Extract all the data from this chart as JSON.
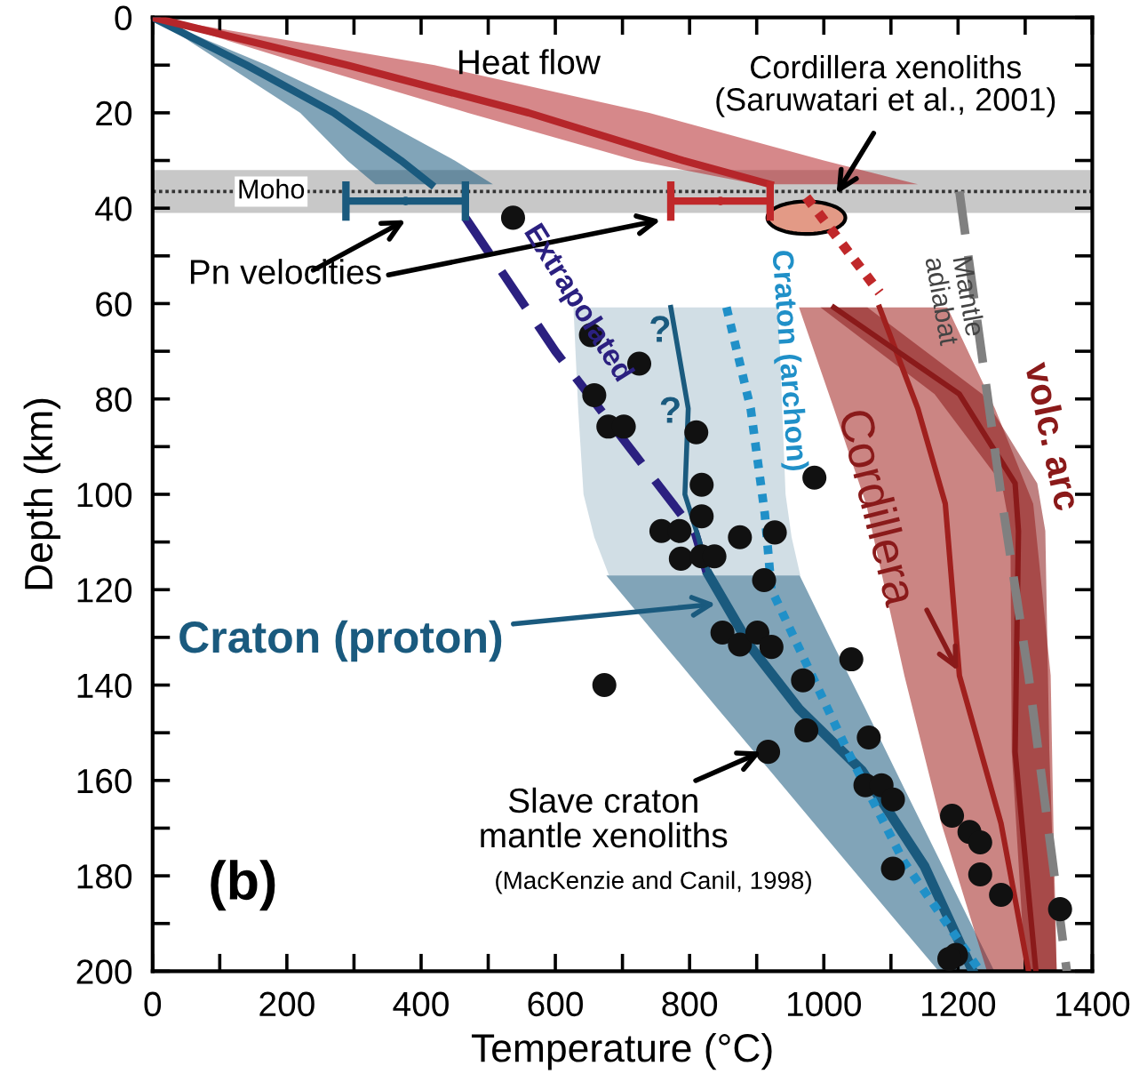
{
  "chart_data": {
    "type": "line",
    "orientation": "horizontal",
    "xlabel": "Temperature (°C)",
    "ylabel": "Depth (km)",
    "xlim": [
      0,
      1400
    ],
    "ylim": [
      200,
      0
    ],
    "xticks": [
      0,
      {
        "value": 100,
        "label": null
      },
      200,
      {
        "value": 300,
        "label": null
      },
      400,
      {
        "value": 500,
        "label": null
      },
      600,
      {
        "value": 700,
        "label": null
      },
      800,
      {
        "value": 900,
        "label": null
      },
      1000,
      {
        "value": 1100,
        "label": null
      },
      1200,
      {
        "value": 1300,
        "label": null
      },
      1400
    ],
    "yticks": [
      0,
      {
        "value": 10,
        "label": null
      },
      20,
      {
        "value": 30,
        "label": null
      },
      40,
      {
        "value": 50,
        "label": null
      },
      60,
      {
        "value": 70,
        "label": null
      },
      80,
      {
        "value": 90,
        "label": null
      },
      100,
      {
        "value": 110,
        "label": null
      },
      120,
      {
        "value": 130,
        "label": null
      },
      140,
      {
        "value": 150,
        "label": null
      },
      160,
      {
        "value": 170,
        "label": null
      },
      180,
      {
        "value": 190,
        "label": null
      },
      200
    ],
    "grid": false,
    "bands": [
      {
        "axis": "y",
        "from": 32,
        "to": 41,
        "label": "Moho",
        "color": "#c8c8c8"
      }
    ],
    "ref_lines": [
      {
        "axis": "y",
        "value": 36.5,
        "color": "#333333",
        "line_style": "dotted"
      }
    ],
    "series": [
      {
        "color": "#1a5a7e",
        "line_style": "solid",
        "x": [
          0,
          10,
          20,
          30,
          35
        ],
        "values": [
          0,
          140,
          270,
          370,
          415
        ],
        "lower": [
          0,
          110,
          220,
          290,
          332
        ],
        "upper": [
          0,
          170,
          320,
          450,
          507
        ]
      },
      {
        "color": "#b5262a",
        "line_style": "solid",
        "x": [
          0,
          10,
          20,
          30,
          35
        ],
        "values": [
          0,
          290,
          560,
          790,
          920
        ],
        "lower": [
          0,
          230,
          470,
          720,
          900
        ],
        "upper": [
          0,
          420,
          740,
          1000,
          1140
        ]
      },
      {
        "color": "#2b2080",
        "line_style": "dashed",
        "x": [
          42,
          70,
          108,
          118
        ],
        "values": [
          466,
          600,
          808,
          829
        ]
      },
      {
        "color": "#1a5a7e",
        "line_style": "solid",
        "x": [
          60.8,
          82,
          100,
          109,
          117
        ],
        "values": [
          772,
          798,
          793,
          813,
          829
        ],
        "lower": [
          627,
          634,
          642,
          658,
          680
        ],
        "upper": [
          932,
          938,
          943,
          952,
          965
        ]
      },
      {
        "color": "#1a5a7e",
        "line_style": "solid",
        "x": [
          117,
          132,
          145,
          158,
          178,
          200
        ],
        "values": [
          829,
          891,
          963,
          1057,
          1150,
          1222
        ],
        "lower": [
          676,
          765,
          842,
          920,
          1039,
          1171
        ],
        "upper": [
          964,
          1016,
          1062,
          1107,
          1177,
          1254
        ]
      },
      {
        "color": "#2090c8",
        "line_style": "dotted",
        "x": [
          60.8,
          82,
          104,
          120,
          154,
          177,
          200
        ],
        "values": [
          855,
          891,
          912,
          922,
          1036,
          1119,
          1233
        ]
      },
      {
        "type": "scatter",
        "color": "#e39a86",
        "marker": "circle",
        "x": [
          42
        ],
        "values": [
          974
        ]
      },
      {
        "color": "#c0282a",
        "line_style": "dotted",
        "x": [
          37.7,
          57.7
        ],
        "values": [
          974,
          1083
        ]
      },
      {
        "color": "#a0201e",
        "line_style": "solid",
        "x": [
          60.8,
          82,
          102,
          138,
          169,
          200
        ],
        "values": [
          1083,
          1140,
          1181,
          1202,
          1264,
          1305
        ],
        "lower": [
          963,
          1015,
          1063,
          1120,
          1175,
          1243
        ],
        "upper": [
          1184,
          1255,
          1312,
          1338,
          1342,
          1347
        ]
      },
      {
        "color": "#8a1a1a",
        "line_style": "solid",
        "x": [
          60.8,
          79,
          97.7,
          107.7,
          154,
          200
        ],
        "values": [
          1015,
          1202,
          1285,
          1290,
          1285,
          1316
        ],
        "lower": [
          995,
          1165,
          1265,
          1278,
          1280,
          1300
        ],
        "upper": [
          1065,
          1236,
          1318,
          1330,
          1336,
          1347
        ]
      },
      {
        "color": "#808080",
        "line_style": "dashed",
        "x": [
          36.5,
          100,
          138,
          200
        ],
        "values": [
          1202,
          1264,
          1305,
          1362
        ]
      },
      {
        "type": "scatter",
        "color": "#1a5a7e",
        "marker": "circle",
        "x": [
          38.5
        ],
        "values": [
          377
        ],
        "errors": [
          [
            288,
            466
          ]
        ]
      },
      {
        "type": "scatter",
        "color": "#c0282a",
        "marker": "circle",
        "x": [
          38.5
        ],
        "values": [
          846
        ],
        "errors": [
          [
            772,
            920
          ]
        ]
      },
      {
        "type": "scatter",
        "color": "#111111",
        "marker": "circle",
        "x": [
          42,
          66.6,
          72.6,
          79.2,
          85.8,
          85.8,
          87,
          96.5,
          98,
          104.6,
          107.7,
          107.7,
          109,
          108,
          113.5,
          113,
          113,
          118,
          129,
          131.5,
          129,
          132,
          134.6,
          139,
          140,
          149.5,
          151,
          154,
          161,
          161,
          164,
          167.4,
          170.8,
          173,
          179.7,
          178.5,
          184,
          187,
          196.6,
          197.4
        ],
        "values": [
          537,
          653,
          725,
          658,
          679,
          702,
          810,
          986,
          818,
          818,
          758,
          785,
          875,
          927,
          787,
          818,
          837,
          911,
          849,
          875,
          901,
          922,
          1041,
          969,
          673,
          974,
          1067,
          917,
          1062,
          1086,
          1103,
          1191,
          1217,
          1233,
          1233,
          1103,
          1264,
          1352,
          1197,
          1187
        ]
      }
    ],
    "annotations": [
      "Heat flow",
      "Pn velocities",
      "Extrapolated",
      "Craton (archon)",
      "Mantle\nadiabat",
      "volc. arc",
      {
        "text": "Cordillera",
        "x": 1200,
        "y": 137
      },
      {
        "text": "Craton (proton)",
        "x": 839,
        "y": 123
      },
      "?",
      "?",
      {
        "text": "Slave craton\nmantle xenoliths",
        "x": 907,
        "y": 154
      },
      "(MacKenzie and Canil, 1998)",
      "(b)",
      "Cordillera xenoliths\n(Saruwatari et al., 2001)"
    ]
  }
}
